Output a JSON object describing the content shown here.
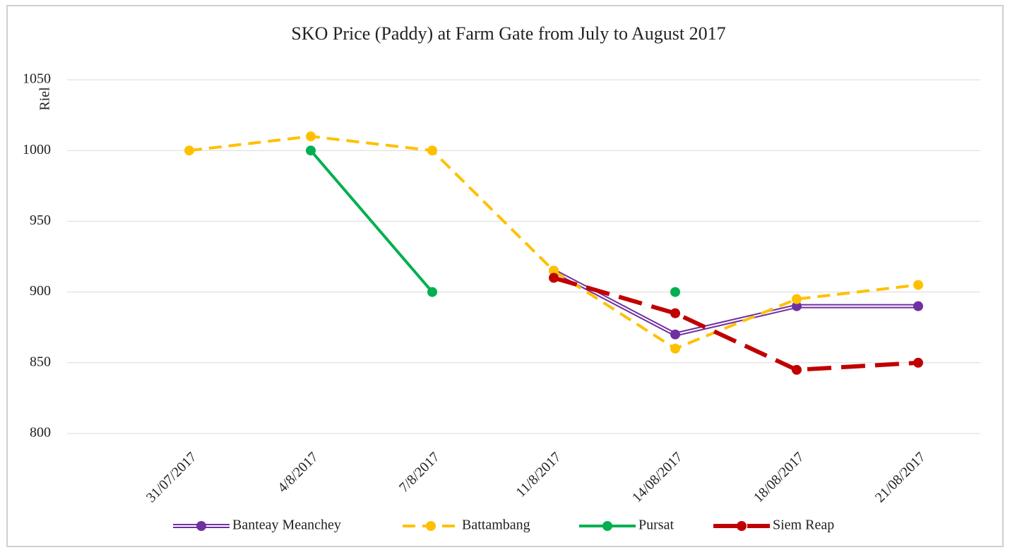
{
  "chart_data": {
    "type": "line",
    "title": "SKO Price (Paddy) at Farm Gate from July to August 2017",
    "y_label": "Riel",
    "categories": [
      "31/07/2017",
      "4/8/2017",
      "7/8/2017",
      "11/8/2017",
      "14/08/2017",
      "18/08/2017",
      "21/08/2017"
    ],
    "series": [
      {
        "name": "Banteay Meanchey",
        "color": "#7030a0",
        "style": "double",
        "values": [
          null,
          null,
          null,
          915,
          870,
          890,
          890
        ]
      },
      {
        "name": "Battambang",
        "color": "#ffc000",
        "style": "dashed",
        "values": [
          1000,
          1010,
          1000,
          915,
          860,
          895,
          905
        ]
      },
      {
        "name": "Pursat",
        "color": "#00b050",
        "style": "solid",
        "values": [
          null,
          1000,
          900,
          null,
          900,
          null,
          null
        ]
      },
      {
        "name": "Siem Reap",
        "color": "#c00000",
        "style": "longdash",
        "values": [
          null,
          null,
          null,
          910,
          885,
          845,
          850
        ]
      }
    ],
    "ylim": [
      800,
      1050
    ],
    "yticks": [
      800,
      850,
      900,
      950,
      1000,
      1050
    ],
    "grid": true,
    "legend": "bottom"
  }
}
